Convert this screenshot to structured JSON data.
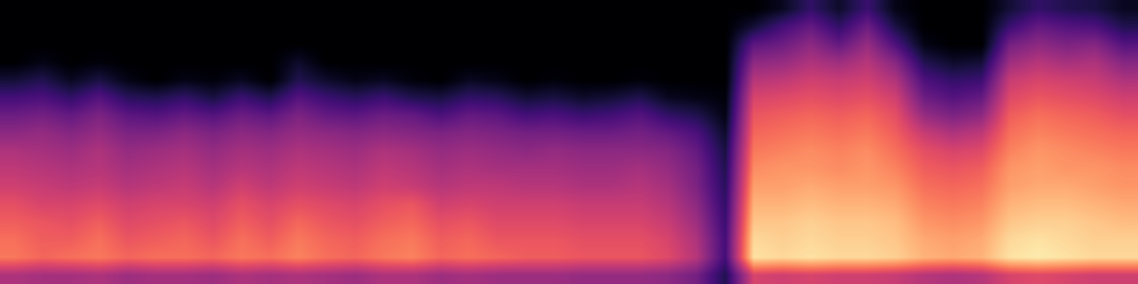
{
  "chart_data": {
    "type": "heatmap",
    "tick_labels": false,
    "zlim": [
      0,
      100
    ],
    "cells": [
      [
        0,
        0,
        0,
        0,
        0,
        0,
        0,
        0,
        0,
        0,
        0,
        0,
        0,
        0,
        0,
        0,
        0,
        0,
        0,
        0,
        0,
        0,
        0,
        0,
        0,
        0,
        0,
        6,
        18,
        8,
        20,
        4,
        0,
        0,
        0,
        10,
        18,
        14,
        12,
        6
      ],
      [
        0,
        0,
        0,
        0,
        0,
        0,
        0,
        0,
        0,
        0,
        0,
        0,
        0,
        0,
        0,
        0,
        0,
        0,
        0,
        0,
        0,
        0,
        0,
        0,
        0,
        0,
        10,
        22,
        30,
        18,
        32,
        12,
        0,
        0,
        0,
        20,
        30,
        26,
        24,
        14
      ],
      [
        0,
        0,
        0,
        0,
        0,
        0,
        0,
        0,
        0,
        0,
        0,
        0,
        0,
        0,
        0,
        0,
        0,
        0,
        0,
        0,
        0,
        0,
        0,
        0,
        0,
        0,
        28,
        32,
        40,
        30,
        42,
        24,
        4,
        0,
        0,
        34,
        40,
        36,
        38,
        26
      ],
      [
        0,
        4,
        0,
        2,
        0,
        0,
        0,
        0,
        0,
        0,
        8,
        0,
        0,
        0,
        0,
        0,
        0,
        0,
        0,
        0,
        0,
        0,
        0,
        0,
        0,
        0,
        40,
        42,
        48,
        44,
        50,
        38,
        14,
        8,
        10,
        44,
        50,
        46,
        48,
        38
      ],
      [
        10,
        14,
        6,
        12,
        4,
        0,
        4,
        2,
        6,
        0,
        14,
        8,
        4,
        6,
        2,
        0,
        6,
        4,
        0,
        2,
        0,
        0,
        2,
        0,
        0,
        0,
        50,
        52,
        56,
        54,
        56,
        48,
        24,
        18,
        20,
        54,
        58,
        56,
        54,
        48
      ],
      [
        22,
        24,
        18,
        26,
        16,
        14,
        18,
        12,
        20,
        14,
        26,
        20,
        16,
        20,
        14,
        12,
        18,
        16,
        10,
        12,
        8,
        10,
        14,
        6,
        4,
        2,
        58,
        60,
        62,
        60,
        62,
        56,
        32,
        26,
        30,
        60,
        64,
        62,
        60,
        56
      ],
      [
        32,
        34,
        30,
        36,
        28,
        26,
        30,
        26,
        32,
        28,
        36,
        30,
        28,
        32,
        30,
        24,
        30,
        28,
        22,
        24,
        20,
        22,
        26,
        18,
        14,
        4,
        64,
        66,
        68,
        66,
        68,
        62,
        42,
        36,
        40,
        66,
        70,
        68,
        66,
        62
      ],
      [
        40,
        42,
        38,
        42,
        36,
        36,
        40,
        36,
        40,
        38,
        42,
        40,
        38,
        40,
        38,
        36,
        38,
        36,
        34,
        34,
        32,
        32,
        34,
        30,
        24,
        8,
        68,
        70,
        72,
        70,
        72,
        66,
        54,
        48,
        52,
        70,
        74,
        72,
        70,
        68
      ],
      [
        48,
        46,
        44,
        48,
        42,
        44,
        46,
        42,
        46,
        44,
        48,
        46,
        44,
        48,
        46,
        42,
        44,
        42,
        40,
        42,
        40,
        40,
        40,
        38,
        30,
        12,
        72,
        74,
        76,
        74,
        76,
        70,
        62,
        58,
        60,
        74,
        78,
        76,
        74,
        72
      ],
      [
        52,
        50,
        48,
        50,
        46,
        48,
        50,
        46,
        50,
        48,
        52,
        50,
        48,
        52,
        50,
        46,
        48,
        46,
        46,
        46,
        44,
        44,
        46,
        42,
        34,
        14,
        76,
        78,
        78,
        76,
        78,
        74,
        66,
        64,
        66,
        78,
        80,
        78,
        78,
        76
      ],
      [
        56,
        54,
        52,
        54,
        50,
        52,
        54,
        50,
        56,
        52,
        56,
        54,
        52,
        56,
        54,
        50,
        52,
        52,
        50,
        50,
        48,
        48,
        50,
        46,
        36,
        16,
        80,
        80,
        82,
        80,
        80,
        78,
        70,
        68,
        70,
        80,
        82,
        82,
        80,
        78
      ],
      [
        62,
        58,
        58,
        60,
        56,
        58,
        58,
        56,
        62,
        58,
        62,
        60,
        58,
        62,
        64,
        56,
        58,
        56,
        56,
        56,
        54,
        54,
        54,
        50,
        40,
        18,
        84,
        84,
        86,
        84,
        84,
        82,
        74,
        72,
        74,
        84,
        86,
        86,
        84,
        82
      ],
      [
        66,
        64,
        62,
        66,
        60,
        62,
        64,
        60,
        66,
        62,
        68,
        64,
        62,
        66,
        68,
        62,
        64,
        60,
        60,
        60,
        58,
        58,
        58,
        54,
        44,
        20,
        88,
        88,
        90,
        88,
        88,
        86,
        78,
        76,
        78,
        88,
        90,
        90,
        88,
        86
      ],
      [
        70,
        66,
        66,
        70,
        64,
        66,
        68,
        64,
        70,
        66,
        72,
        68,
        66,
        70,
        72,
        66,
        68,
        64,
        64,
        64,
        62,
        62,
        62,
        58,
        48,
        22,
        92,
        90,
        92,
        90,
        90,
        88,
        82,
        80,
        82,
        92,
        94,
        92,
        90,
        90
      ],
      [
        72,
        68,
        70,
        72,
        68,
        70,
        70,
        68,
        72,
        70,
        74,
        70,
        68,
        72,
        74,
        68,
        70,
        68,
        66,
        66,
        64,
        64,
        64,
        60,
        50,
        22,
        94,
        92,
        94,
        92,
        92,
        90,
        84,
        82,
        84,
        94,
        96,
        94,
        92,
        92
      ],
      [
        48,
        46,
        46,
        48,
        44,
        46,
        46,
        44,
        48,
        46,
        48,
        46,
        44,
        48,
        48,
        44,
        46,
        44,
        44,
        44,
        42,
        42,
        42,
        40,
        34,
        14,
        58,
        56,
        58,
        56,
        56,
        54,
        50,
        48,
        50,
        58,
        60,
        58,
        56,
        56
      ]
    ]
  }
}
